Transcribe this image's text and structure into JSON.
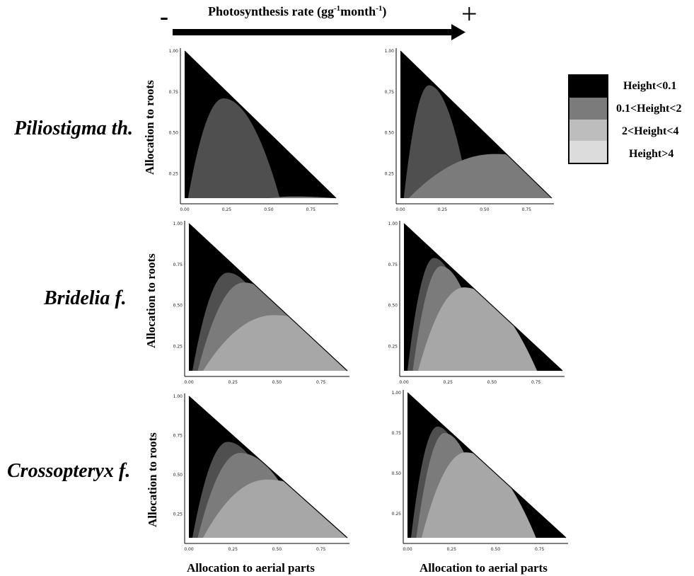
{
  "header": {
    "minus": "-",
    "plus": "+",
    "title_main": "Photosynthesis rate (gg",
    "title_sup1": "-1",
    "title_mid": "month",
    "title_sup2": "-1",
    "title_end": ")"
  },
  "species": [
    "Piliostigma th.",
    "Bridelia f.",
    "Crossopteryx f."
  ],
  "axis_labels": {
    "y": "Allocation to roots",
    "x": "Allocation to aerial parts"
  },
  "legend": {
    "items": [
      {
        "label": "Height<0.1",
        "color": "#000000"
      },
      {
        "label": "0.1<Height<2",
        "color": "#7b7b7b"
      },
      {
        "label": "2<Height<4",
        "color": "#bdbdbd"
      },
      {
        "label": "Height>4",
        "color": "#dcdcdc"
      }
    ]
  },
  "chart_data": [
    {
      "type": "area",
      "species": "Piliostigma th.",
      "photosynthesis": "low",
      "x_ticks": [
        "0.00",
        "0.25",
        "0.50",
        "0.75"
      ],
      "y_ticks": [
        "1.00",
        "0.75",
        "0.50",
        "0.25"
      ],
      "xlim": [
        0,
        0.9
      ],
      "ylim": [
        0.1,
        1.0
      ],
      "triangle": "x + y <= 1",
      "regions": [
        {
          "class": "Height<0.1",
          "color": "#000000"
        },
        {
          "class": "0.1<Height<2",
          "color": "#4f4f4f",
          "boundary_peak": {
            "x": 0.23,
            "y": 0.71
          }
        },
        {
          "class": "2<Height<4",
          "color": "#7b7b7b",
          "boundary_peak": {
            "x": 0.65,
            "y": 0.11
          }
        }
      ]
    },
    {
      "type": "area",
      "species": "Piliostigma th.",
      "photosynthesis": "high",
      "x_ticks": [
        "0.00",
        "0.25",
        "0.50",
        "0.75"
      ],
      "y_ticks": [
        "1.00",
        "0.75",
        "0.50",
        "0.25"
      ],
      "xlim": [
        0,
        0.9
      ],
      "ylim": [
        0.1,
        1.0
      ],
      "triangle": "x + y <= 1",
      "regions": [
        {
          "class": "Height<0.1",
          "color": "#000000"
        },
        {
          "class": "0.1<Height<2",
          "color": "#4f4f4f",
          "boundary_peak": {
            "x": 0.17,
            "y": 0.79
          }
        },
        {
          "class": "2<Height<4",
          "color": "#7b7b7b",
          "boundary_peak": {
            "x": 0.56,
            "y": 0.37
          }
        }
      ]
    },
    {
      "type": "area",
      "species": "Bridelia f.",
      "photosynthesis": "low",
      "x_ticks": [
        "0.00",
        "0.25",
        "0.50",
        "0.75"
      ],
      "y_ticks": [
        "1.00",
        "0.75",
        "0.50",
        "0.25"
      ],
      "xlim": [
        0,
        0.9
      ],
      "ylim": [
        0.1,
        1.0
      ],
      "triangle": "x + y <= 1",
      "regions": [
        {
          "class": "Height<0.1",
          "color": "#000000"
        },
        {
          "class": "0.1<Height<2",
          "color": "#4f4f4f",
          "boundary_peak": {
            "x": 0.22,
            "y": 0.7
          }
        },
        {
          "class": "2<Height<4",
          "color": "#7b7b7b",
          "boundary_peak": {
            "x": 0.31,
            "y": 0.64
          }
        },
        {
          "class": "Height>4",
          "color": "#a7a7a7",
          "boundary_peak": {
            "x": 0.48,
            "y": 0.44
          }
        }
      ]
    },
    {
      "type": "area",
      "species": "Bridelia f.",
      "photosynthesis": "high",
      "x_ticks": [
        "0.00",
        "0.25",
        "0.50",
        "0.75"
      ],
      "y_ticks": [
        "1.00",
        "0.75",
        "0.50",
        "0.25"
      ],
      "xlim": [
        0,
        0.9
      ],
      "ylim": [
        0.1,
        1.0
      ],
      "triangle": "x + y <= 1",
      "regions": [
        {
          "class": "Height<0.1",
          "color": "#000000"
        },
        {
          "class": "0.1<Height<2",
          "color": "#4f4f4f",
          "boundary_peak": {
            "x": 0.17,
            "y": 0.79
          }
        },
        {
          "class": "2<Height<4",
          "color": "#7b7b7b",
          "boundary_peak": {
            "x": 0.21,
            "y": 0.74
          }
        },
        {
          "class": "Height>4",
          "color": "#a7a7a7",
          "boundary_peak": {
            "x": 0.34,
            "y": 0.61
          }
        }
      ]
    },
    {
      "type": "area",
      "species": "Crossopteryx f.",
      "photosynthesis": "low",
      "x_ticks": [
        "0.00",
        "0.25",
        "0.50",
        "0.75"
      ],
      "y_ticks": [
        "1.00",
        "0.75",
        "0.50",
        "0.25"
      ],
      "xlim": [
        0,
        0.9
      ],
      "ylim": [
        0.1,
        1.0
      ],
      "triangle": "x + y <= 1",
      "regions": [
        {
          "class": "Height<0.1",
          "color": "#000000"
        },
        {
          "class": "0.1<Height<2",
          "color": "#4f4f4f",
          "boundary_peak": {
            "x": 0.22,
            "y": 0.71
          }
        },
        {
          "class": "2<Height<4",
          "color": "#7b7b7b",
          "boundary_peak": {
            "x": 0.29,
            "y": 0.64
          }
        },
        {
          "class": "Height>4",
          "color": "#a7a7a7",
          "boundary_peak": {
            "x": 0.44,
            "y": 0.47
          }
        }
      ]
    },
    {
      "type": "area",
      "species": "Crossopteryx f.",
      "photosynthesis": "high",
      "x_ticks": [
        "0.00",
        "0.25",
        "0.50",
        "0.75"
      ],
      "y_ticks": [
        "1.00",
        "0.75",
        "0.50",
        "0.25"
      ],
      "xlim": [
        0,
        0.9
      ],
      "ylim": [
        0.1,
        1.0
      ],
      "triangle": "x + y <= 1",
      "regions": [
        {
          "class": "Height<0.1",
          "color": "#000000"
        },
        {
          "class": "0.1<Height<2",
          "color": "#4f4f4f",
          "boundary_peak": {
            "x": 0.17,
            "y": 0.79
          }
        },
        {
          "class": "2<Height<4",
          "color": "#7b7b7b",
          "boundary_peak": {
            "x": 0.21,
            "y": 0.75
          }
        },
        {
          "class": "Height>4",
          "color": "#a7a7a7",
          "boundary_peak": {
            "x": 0.33,
            "y": 0.63
          }
        }
      ]
    }
  ]
}
